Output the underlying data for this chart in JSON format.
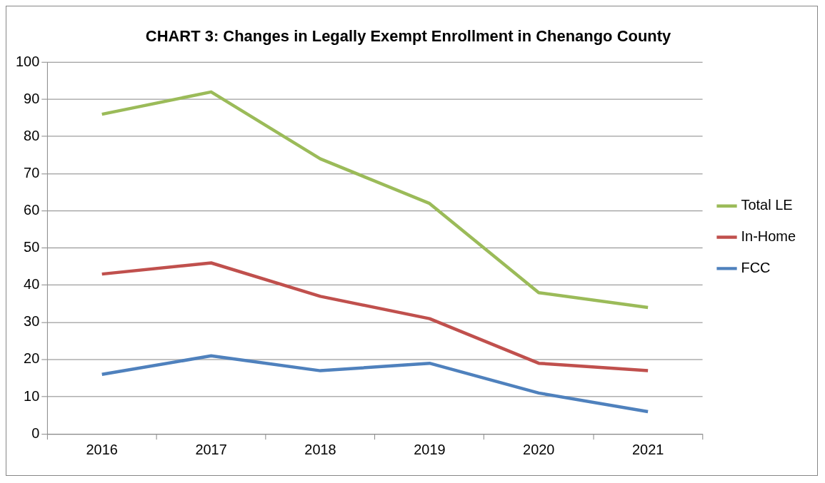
{
  "chart_data": {
    "type": "line",
    "title": "CHART 3: Changes in Legally Exempt Enrollment in Chenango County",
    "categories": [
      "2016",
      "2017",
      "2018",
      "2019",
      "2020",
      "2021"
    ],
    "series": [
      {
        "name": "Total LE",
        "color": "#9bbb59",
        "values": [
          86,
          92,
          74,
          62,
          38,
          34
        ]
      },
      {
        "name": "In-Home",
        "color": "#c0504d",
        "values": [
          43,
          46,
          37,
          31,
          19,
          17
        ]
      },
      {
        "name": "FCC",
        "color": "#4f81bd",
        "values": [
          16,
          21,
          17,
          19,
          11,
          6
        ]
      }
    ],
    "ylim": [
      0,
      100
    ],
    "yticks": [
      0,
      10,
      20,
      30,
      40,
      50,
      60,
      70,
      80,
      90,
      100
    ],
    "grid": "y",
    "legend": "right",
    "marker": "none",
    "line_style": "solid"
  }
}
